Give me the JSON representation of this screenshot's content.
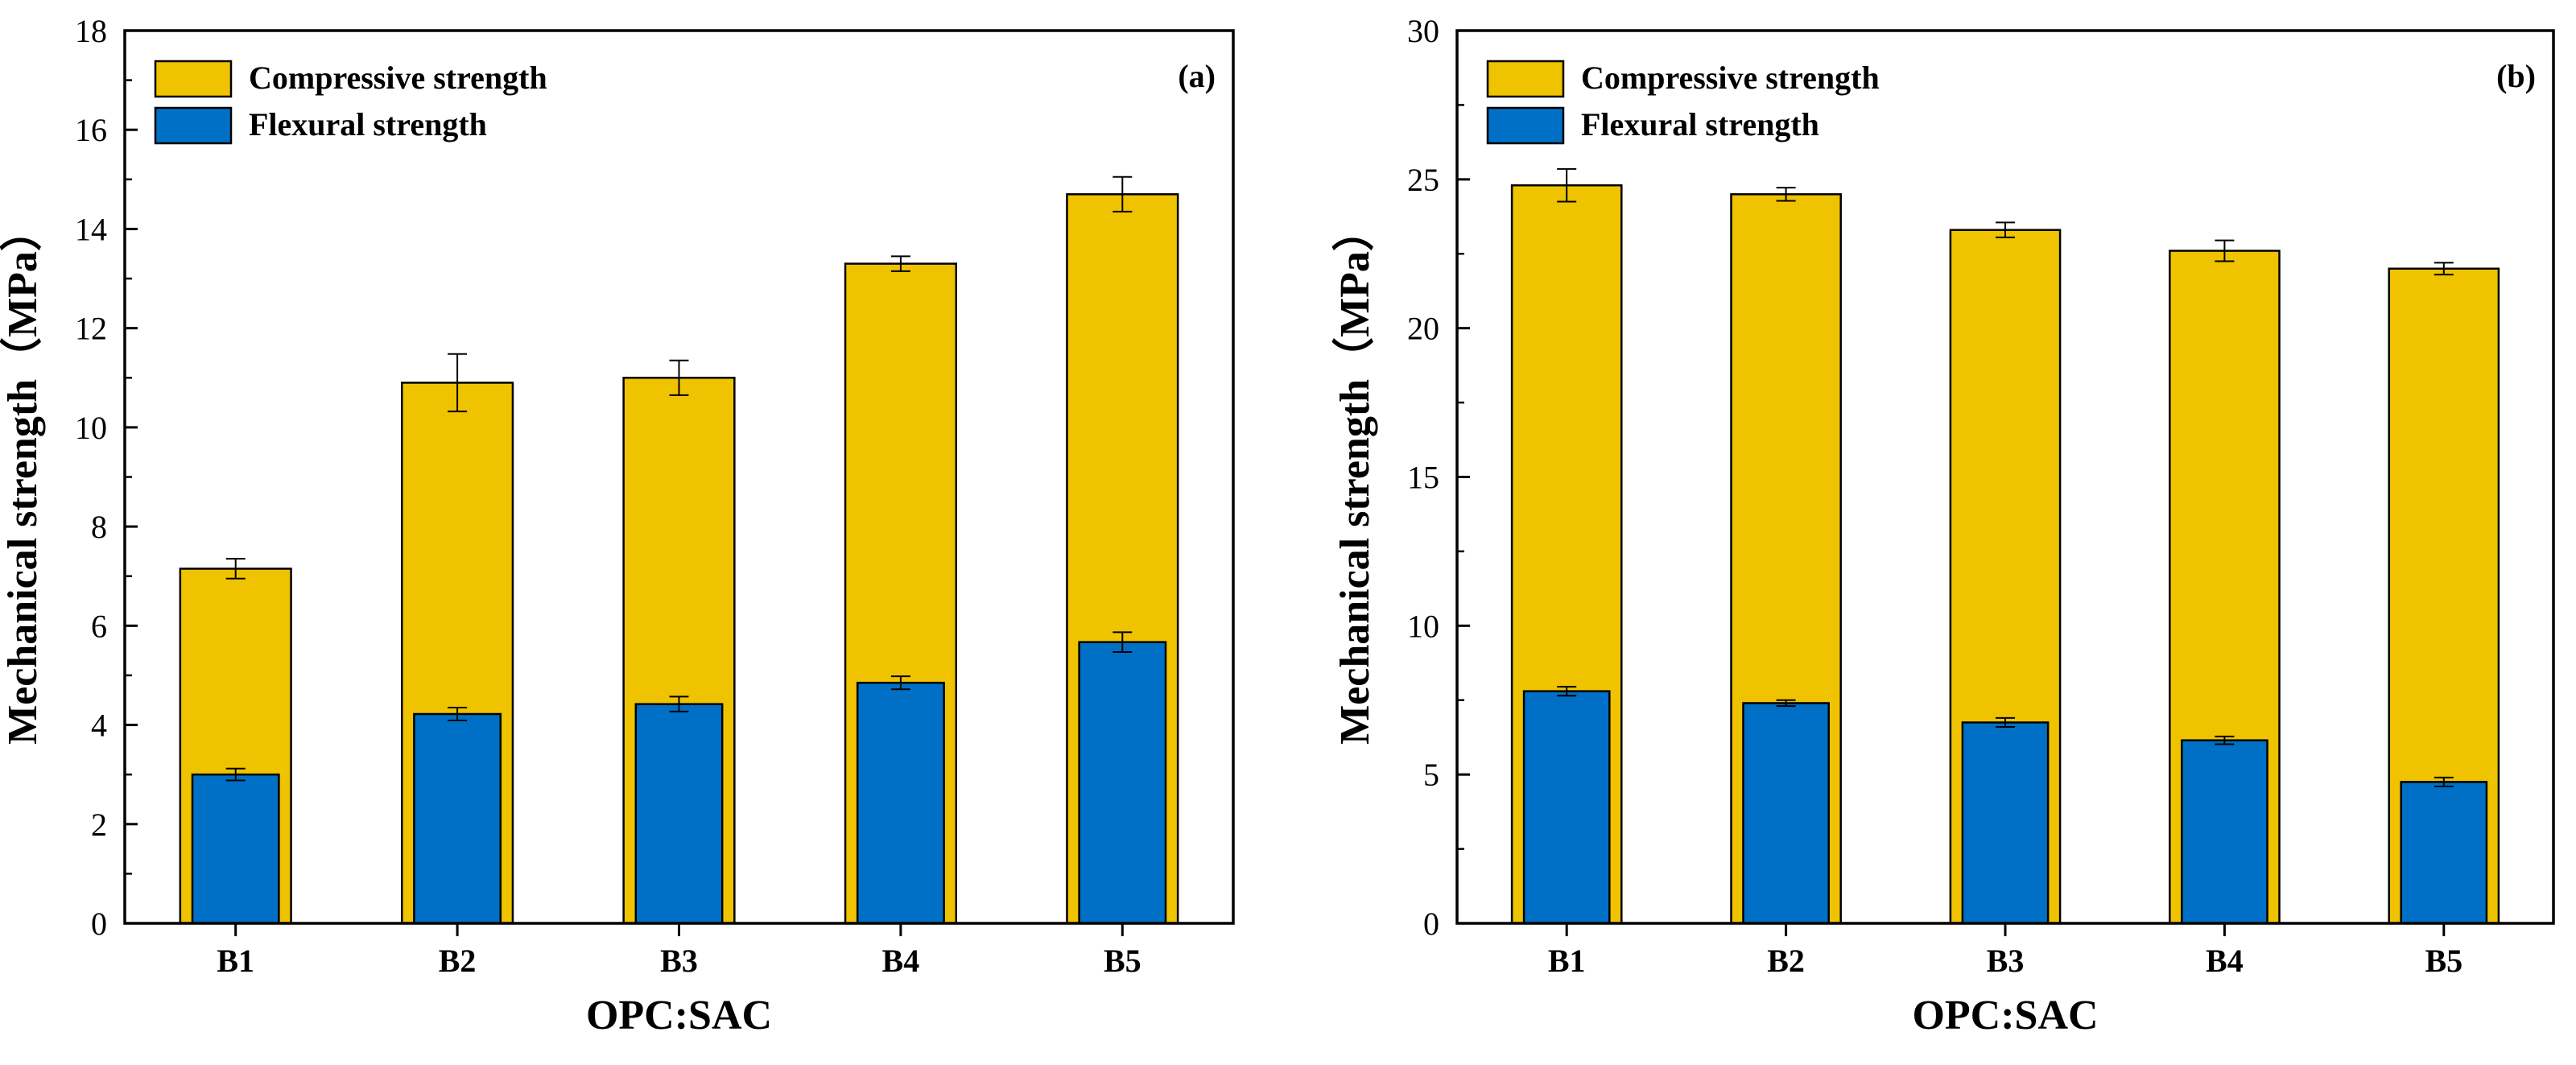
{
  "figure": {
    "colors": {
      "compressive": "#efc300",
      "flexural": "#0070c6",
      "axis": "#000000",
      "error_bar": "#000000"
    }
  },
  "chart_data": [
    {
      "type": "bar",
      "panel_label": "(a)",
      "title": "",
      "xlabel": "OPC:SAC",
      "ylabel": "Mechanical strength（MPa）",
      "ylim": [
        0,
        18
      ],
      "yticks": [
        0,
        2,
        4,
        6,
        8,
        10,
        12,
        14,
        16,
        18
      ],
      "grid": false,
      "legend_position": "top-left",
      "categories": [
        "B1",
        "B2",
        "B3",
        "B4",
        "B5"
      ],
      "series": [
        {
          "name": "Compressive strength",
          "values": [
            7.15,
            10.9,
            11.0,
            13.3,
            14.7
          ],
          "errors": [
            0.2,
            0.58,
            0.35,
            0.15,
            0.35
          ]
        },
        {
          "name": "Flexural strength",
          "values": [
            3.0,
            4.22,
            4.42,
            4.85,
            5.67
          ],
          "errors": [
            0.12,
            0.13,
            0.15,
            0.13,
            0.2
          ]
        }
      ]
    },
    {
      "type": "bar",
      "panel_label": "(b)",
      "title": "",
      "xlabel": "OPC:SAC",
      "ylabel": "Mechanical strength（MPa）",
      "ylim": [
        0,
        30
      ],
      "yticks": [
        0,
        5,
        10,
        15,
        20,
        25,
        30
      ],
      "grid": false,
      "legend_position": "top-left",
      "categories": [
        "B1",
        "B2",
        "B3",
        "B4",
        "B5"
      ],
      "series": [
        {
          "name": "Compressive strength",
          "values": [
            24.8,
            24.5,
            23.3,
            22.6,
            22.0
          ],
          "errors": [
            0.55,
            0.22,
            0.25,
            0.35,
            0.2
          ]
        },
        {
          "name": "Flexural strength",
          "values": [
            7.8,
            7.4,
            6.75,
            6.15,
            4.75
          ],
          "errors": [
            0.15,
            0.1,
            0.15,
            0.13,
            0.15
          ]
        }
      ]
    }
  ]
}
